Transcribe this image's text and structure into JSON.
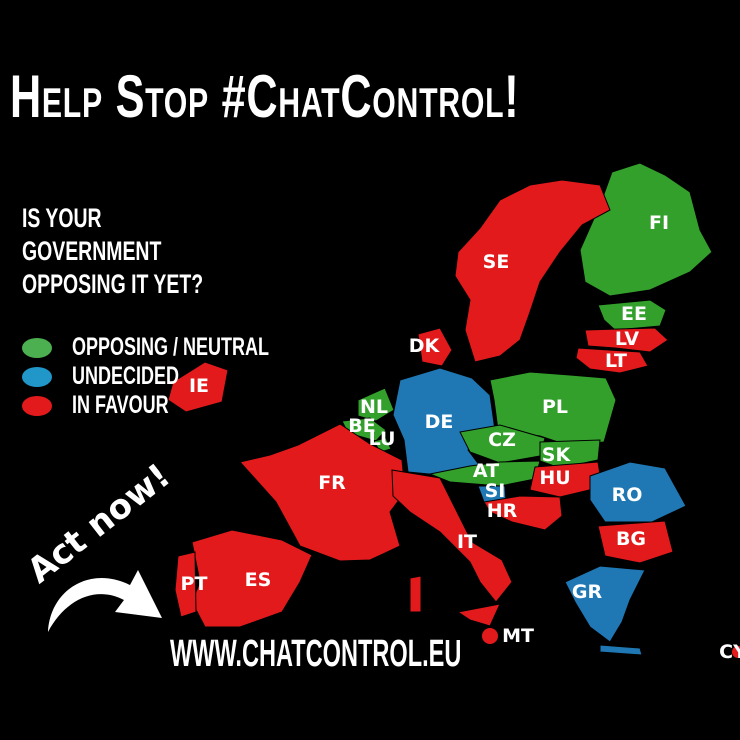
{
  "title": "Help Stop #ChatControl!",
  "question": "IS YOUR GOVERNMENT OPPOSING IT YET?",
  "legend": [
    {
      "label": "OPPOSING / NEUTRAL",
      "status": "opposing",
      "color": "#4caf50"
    },
    {
      "label": "UNDECIDED",
      "status": "undecided",
      "color": "#2196c8"
    },
    {
      "label": "IN FAVOUR",
      "status": "favour",
      "color": "#e31a1c"
    }
  ],
  "status_colors": {
    "opposing": "#33a02c",
    "undecided": "#1f78b4",
    "favour": "#e31a1c"
  },
  "countries": [
    {
      "code": "FI",
      "status": "opposing"
    },
    {
      "code": "SE",
      "status": "favour"
    },
    {
      "code": "EE",
      "status": "opposing"
    },
    {
      "code": "LV",
      "status": "favour"
    },
    {
      "code": "LT",
      "status": "favour"
    },
    {
      "code": "DK",
      "status": "favour"
    },
    {
      "code": "IE",
      "status": "favour"
    },
    {
      "code": "NL",
      "status": "opposing"
    },
    {
      "code": "BE",
      "status": "opposing"
    },
    {
      "code": "LU",
      "status": "opposing"
    },
    {
      "code": "DE",
      "status": "undecided"
    },
    {
      "code": "PL",
      "status": "opposing"
    },
    {
      "code": "CZ",
      "status": "opposing"
    },
    {
      "code": "SK",
      "status": "opposing"
    },
    {
      "code": "AT",
      "status": "opposing"
    },
    {
      "code": "HU",
      "status": "favour"
    },
    {
      "code": "SI",
      "status": "undecided"
    },
    {
      "code": "HR",
      "status": "favour"
    },
    {
      "code": "RO",
      "status": "undecided"
    },
    {
      "code": "BG",
      "status": "favour"
    },
    {
      "code": "GR",
      "status": "undecided"
    },
    {
      "code": "FR",
      "status": "favour"
    },
    {
      "code": "ES",
      "status": "favour"
    },
    {
      "code": "PT",
      "status": "favour"
    },
    {
      "code": "IT",
      "status": "favour"
    },
    {
      "code": "MT",
      "status": "favour"
    },
    {
      "code": "CY",
      "status": "favour"
    }
  ],
  "call_to_action": "Act now!",
  "website": "WWW.CHATCONTROL.EU"
}
